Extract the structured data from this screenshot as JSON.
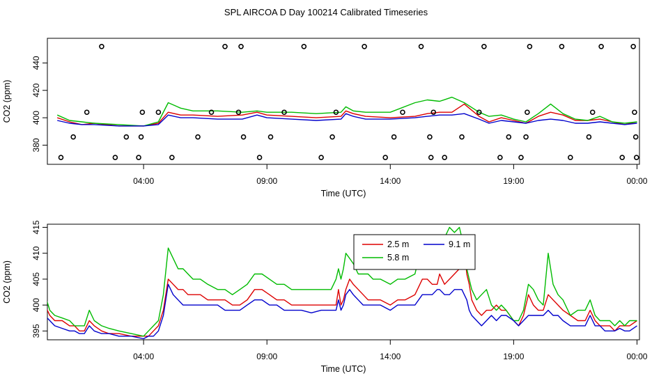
{
  "title": "SPL AIRCOA D  Day 100214  Calibrated Timeseries",
  "colors": {
    "s1": "#dd0000",
    "s2": "#00bb00",
    "s3": "#0000cc",
    "axis": "#000000"
  },
  "chart_data": [
    {
      "type": "line",
      "panel": "top",
      "xlabel": "Time (UTC)",
      "ylabel": "CO2 (ppm)",
      "x_ticks": [
        "04:00",
        "09:00",
        "14:00",
        "19:00",
        "00:00"
      ],
      "x_tick_hours": [
        4,
        9,
        14,
        19,
        24
      ],
      "xlim": [
        0.1,
        24.1
      ],
      "y_ticks": [
        "380",
        "400",
        "420",
        "440"
      ],
      "y_tick_values": [
        380,
        400,
        420,
        440
      ],
      "ylim": [
        366,
        458
      ],
      "series": [
        {
          "key": "s1",
          "x": [
            0.5,
            1.0,
            1.5,
            2.0,
            3.0,
            4.0,
            4.6,
            5.0,
            5.5,
            6.0,
            7.0,
            8.0,
            8.6,
            9.0,
            10.0,
            11.0,
            12.0,
            12.2,
            12.5,
            13.0,
            14.0,
            15.0,
            15.5,
            16.0,
            16.5,
            17.0,
            17.6,
            18.0,
            18.5,
            19.0,
            19.5,
            20.0,
            20.5,
            21.0,
            21.5,
            22.0,
            22.5,
            23.0,
            23.5,
            24.0
          ],
          "y": [
            400,
            397,
            395,
            396,
            394,
            394,
            396,
            404,
            402,
            402,
            401,
            402,
            404,
            402,
            401,
            400,
            401,
            405,
            403,
            401,
            400,
            401,
            403,
            404,
            404,
            410,
            401,
            397,
            400,
            398,
            396,
            401,
            404,
            402,
            398,
            398,
            399,
            397,
            395,
            397
          ]
        },
        {
          "key": "s2",
          "x": [
            0.5,
            1.0,
            1.5,
            2.0,
            3.0,
            4.0,
            4.6,
            5.0,
            5.5,
            6.0,
            7.0,
            8.0,
            8.6,
            9.0,
            10.0,
            11.0,
            12.0,
            12.2,
            12.5,
            13.0,
            14.0,
            15.0,
            15.5,
            16.0,
            16.5,
            17.0,
            17.6,
            18.0,
            18.5,
            19.0,
            19.5,
            20.0,
            20.5,
            21.0,
            21.5,
            22.0,
            22.5,
            23.0,
            23.5,
            24.0
          ],
          "y": [
            402,
            398,
            397,
            396,
            395,
            394,
            397,
            411,
            407,
            405,
            405,
            404,
            405,
            404,
            404,
            403,
            404,
            408,
            405,
            404,
            404,
            411,
            413,
            412,
            415,
            411,
            404,
            401,
            402,
            399,
            397,
            403,
            410,
            403,
            399,
            398,
            401,
            397,
            396,
            397
          ]
        },
        {
          "key": "s3",
          "x": [
            0.5,
            1.0,
            1.5,
            2.0,
            3.0,
            4.0,
            4.6,
            5.0,
            5.5,
            6.0,
            7.0,
            8.0,
            8.6,
            9.0,
            10.0,
            11.0,
            12.0,
            12.2,
            12.5,
            13.0,
            14.0,
            15.0,
            15.5,
            16.0,
            16.5,
            17.0,
            17.6,
            18.0,
            18.5,
            19.0,
            19.5,
            20.0,
            20.5,
            21.0,
            21.5,
            22.0,
            22.5,
            23.0,
            23.5,
            24.0
          ],
          "y": [
            398,
            396,
            395,
            395,
            394,
            394,
            395,
            402,
            400,
            400,
            399,
            399,
            402,
            400,
            399,
            398,
            399,
            403,
            401,
            399,
            399,
            400,
            401,
            402,
            402,
            403,
            399,
            396,
            398,
            397,
            396,
            398,
            399,
            398,
            396,
            396,
            397,
            396,
            395,
            396
          ]
        },
        {
          "key": "circles",
          "marker": "circle",
          "x": [
            0.65,
            1.15,
            1.7,
            2.3,
            2.85,
            3.3,
            3.8,
            3.9,
            3.95,
            4.6,
            5.15,
            6.2,
            6.75,
            7.3,
            7.85,
            7.95,
            8.05,
            8.7,
            9.15,
            9.7,
            10.5,
            11.2,
            11.65,
            11.8,
            12.95,
            13.8,
            14.15,
            14.5,
            15.25,
            15.6,
            15.65,
            15.75,
            16.2,
            16.9,
            17.6,
            17.8,
            18.45,
            18.8,
            19.3,
            19.5,
            19.55,
            19.65,
            20.95,
            21.3,
            22.05,
            22.2,
            22.55,
            23.4,
            23.85,
            23.9,
            23.95,
            23.98
          ],
          "y": [
            371,
            386,
            404,
            452,
            371,
            386,
            371,
            386,
            404,
            404,
            371,
            386,
            404,
            452,
            404,
            452,
            386,
            371,
            386,
            404,
            452,
            371,
            386,
            404,
            452,
            371,
            386,
            404,
            452,
            386,
            371,
            404,
            371,
            386,
            404,
            452,
            371,
            386,
            371,
            386,
            404,
            452,
            452,
            371,
            386,
            404,
            452,
            371,
            452,
            404,
            386,
            371
          ]
        }
      ]
    },
    {
      "type": "line",
      "panel": "bottom",
      "xlabel": "Time (UTC)",
      "ylabel": "CO2 (ppm)",
      "x_ticks": [
        "04:00",
        "09:00",
        "14:00",
        "19:00",
        "00:00"
      ],
      "x_tick_hours": [
        4,
        9,
        14,
        19,
        24
      ],
      "xlim": [
        0.1,
        24.1
      ],
      "y_ticks": [
        "395",
        "400",
        "405",
        "410",
        "415"
      ],
      "y_tick_values": [
        395,
        400,
        405,
        410,
        415
      ],
      "ylim": [
        393.3,
        415.6
      ],
      "legend": {
        "placement": "top-center",
        "entries": [
          "2.5 m",
          "9.1 m",
          "5.8 m"
        ],
        "keys": [
          "s1",
          "s3",
          "s2"
        ]
      },
      "series": [
        {
          "name": "2.5 m",
          "key": "s1",
          "x": [
            0.0,
            0.2,
            0.4,
            0.7,
            1.0,
            1.2,
            1.4,
            1.6,
            1.8,
            2.0,
            2.3,
            2.6,
            3.0,
            3.5,
            4.0,
            4.2,
            4.4,
            4.6,
            4.8,
            5.0,
            5.2,
            5.4,
            5.6,
            5.8,
            6.0,
            6.3,
            6.6,
            7.0,
            7.3,
            7.6,
            7.9,
            8.2,
            8.5,
            8.8,
            9.1,
            9.4,
            9.7,
            10.0,
            10.4,
            10.8,
            11.2,
            11.6,
            11.8,
            11.9,
            12.0,
            12.1,
            12.2,
            12.35,
            12.5,
            12.7,
            12.9,
            13.1,
            13.3,
            13.6,
            14.0,
            14.3,
            14.6,
            15.0,
            15.3,
            15.5,
            15.7,
            15.9,
            16.0,
            16.2,
            16.4,
            16.6,
            16.8,
            16.9,
            17.0,
            17.1,
            17.2,
            17.3,
            17.5,
            17.7,
            17.9,
            18.1,
            18.3,
            18.5,
            18.7,
            19.0,
            19.2,
            19.4,
            19.6,
            19.8,
            20.0,
            20.2,
            20.4,
            20.6,
            20.8,
            21.0,
            21.3,
            21.6,
            21.9,
            22.1,
            22.3,
            22.5,
            22.7,
            22.9,
            23.1,
            23.3,
            23.5,
            23.7,
            24.0
          ],
          "y": [
            400,
            398,
            397,
            397,
            396,
            396,
            395,
            395,
            397,
            396,
            395,
            394.5,
            394.5,
            394,
            394,
            394,
            395,
            396,
            399,
            405,
            404,
            403,
            403,
            402,
            402,
            402,
            401,
            401,
            401,
            400,
            400,
            401,
            403,
            403,
            402,
            401,
            401,
            400,
            400,
            400,
            400,
            400,
            400,
            403,
            400,
            401,
            403,
            405,
            404,
            403,
            402,
            401,
            401,
            401,
            400,
            401,
            401,
            402,
            405,
            405,
            404,
            404,
            406,
            404,
            405,
            406,
            407,
            409,
            411,
            406,
            404,
            401,
            399,
            398,
            399,
            399,
            400,
            399,
            399,
            397,
            396,
            398,
            402,
            400,
            399,
            399,
            402,
            401,
            400,
            399,
            398,
            397,
            397,
            399,
            397,
            396,
            396,
            396,
            395,
            396,
            396,
            396,
            397
          ]
        },
        {
          "name": "5.8 m",
          "key": "s2",
          "x": [
            0.0,
            0.2,
            0.4,
            0.7,
            1.0,
            1.2,
            1.4,
            1.6,
            1.8,
            2.0,
            2.3,
            2.6,
            3.0,
            3.5,
            4.0,
            4.2,
            4.4,
            4.6,
            4.8,
            5.0,
            5.2,
            5.4,
            5.6,
            5.8,
            6.0,
            6.3,
            6.6,
            7.0,
            7.3,
            7.6,
            7.9,
            8.2,
            8.5,
            8.8,
            9.1,
            9.4,
            9.7,
            10.0,
            10.4,
            10.8,
            11.2,
            11.6,
            11.8,
            11.9,
            12.0,
            12.1,
            12.2,
            12.35,
            12.5,
            12.7,
            12.9,
            13.1,
            13.3,
            13.6,
            14.0,
            14.3,
            14.6,
            15.0,
            15.3,
            15.5,
            15.7,
            15.9,
            16.0,
            16.2,
            16.4,
            16.6,
            16.8,
            16.9,
            17.0,
            17.1,
            17.2,
            17.3,
            17.5,
            17.7,
            17.9,
            18.1,
            18.3,
            18.5,
            18.7,
            19.0,
            19.2,
            19.4,
            19.6,
            19.8,
            20.0,
            20.2,
            20.4,
            20.6,
            20.8,
            21.0,
            21.3,
            21.6,
            21.9,
            22.1,
            22.3,
            22.5,
            22.7,
            22.9,
            23.1,
            23.3,
            23.5,
            23.7,
            24.0
          ],
          "y": [
            402,
            399,
            398,
            397.5,
            397,
            396,
            396,
            396,
            399,
            397,
            396,
            395.5,
            395,
            394.5,
            394,
            395,
            396,
            397,
            402,
            411,
            409,
            407,
            407,
            406,
            405,
            405,
            404,
            403,
            403,
            402,
            403,
            404,
            406,
            406,
            405,
            404,
            404,
            403,
            403,
            403,
            403,
            403,
            405,
            407,
            405,
            407,
            410,
            409,
            408,
            406,
            406,
            406,
            405,
            405,
            404,
            405,
            405,
            406,
            412,
            410,
            412,
            413,
            412,
            413,
            415,
            414,
            415,
            413,
            410,
            407,
            405,
            403,
            401,
            402,
            403,
            400,
            399,
            400,
            399,
            397,
            397,
            399,
            404,
            403,
            401,
            400,
            410,
            404,
            402,
            401,
            398,
            399,
            399,
            401,
            398,
            397,
            397,
            397,
            396,
            397,
            396,
            397,
            397
          ]
        },
        {
          "name": "9.1 m",
          "key": "s3",
          "x": [
            0.0,
            0.2,
            0.4,
            0.7,
            1.0,
            1.2,
            1.4,
            1.6,
            1.8,
            2.0,
            2.3,
            2.6,
            3.0,
            3.5,
            4.0,
            4.2,
            4.4,
            4.6,
            4.8,
            5.0,
            5.2,
            5.4,
            5.6,
            5.8,
            6.0,
            6.3,
            6.6,
            7.0,
            7.3,
            7.6,
            7.9,
            8.2,
            8.5,
            8.8,
            9.1,
            9.4,
            9.7,
            10.0,
            10.4,
            10.8,
            11.2,
            11.6,
            11.8,
            11.9,
            12.0,
            12.1,
            12.2,
            12.35,
            12.5,
            12.7,
            12.9,
            13.1,
            13.3,
            13.6,
            14.0,
            14.3,
            14.6,
            15.0,
            15.3,
            15.5,
            15.7,
            15.9,
            16.0,
            16.2,
            16.4,
            16.6,
            16.8,
            16.9,
            17.0,
            17.1,
            17.2,
            17.3,
            17.5,
            17.7,
            17.9,
            18.1,
            18.3,
            18.5,
            18.7,
            19.0,
            19.2,
            19.4,
            19.6,
            19.8,
            20.0,
            20.2,
            20.4,
            20.6,
            20.8,
            21.0,
            21.3,
            21.6,
            21.9,
            22.1,
            22.3,
            22.5,
            22.7,
            22.9,
            23.1,
            23.3,
            23.5,
            23.7,
            24.0
          ],
          "y": [
            398,
            397,
            396,
            395.5,
            395,
            395,
            394.5,
            394.5,
            396,
            395,
            394.5,
            394.5,
            394,
            394,
            393.5,
            394,
            394,
            395,
            398,
            404,
            402,
            401,
            400,
            400,
            400,
            400,
            400,
            400,
            399,
            399,
            399,
            400,
            401,
            401,
            400,
            400,
            399,
            399,
            399,
            398.5,
            399,
            399,
            399,
            401,
            399,
            400,
            402,
            403,
            402,
            401,
            400,
            400,
            400,
            400,
            399,
            400,
            400,
            400,
            402,
            402,
            402,
            403,
            403,
            402,
            402,
            403,
            403,
            403,
            402,
            401,
            399,
            398,
            397,
            396,
            397,
            398,
            397,
            398,
            398,
            397,
            396,
            397,
            398,
            398,
            398,
            398,
            399,
            398,
            398,
            397,
            396,
            396,
            396,
            398,
            396,
            396,
            395,
            395,
            395,
            395.5,
            395,
            395,
            396
          ]
        }
      ]
    }
  ]
}
